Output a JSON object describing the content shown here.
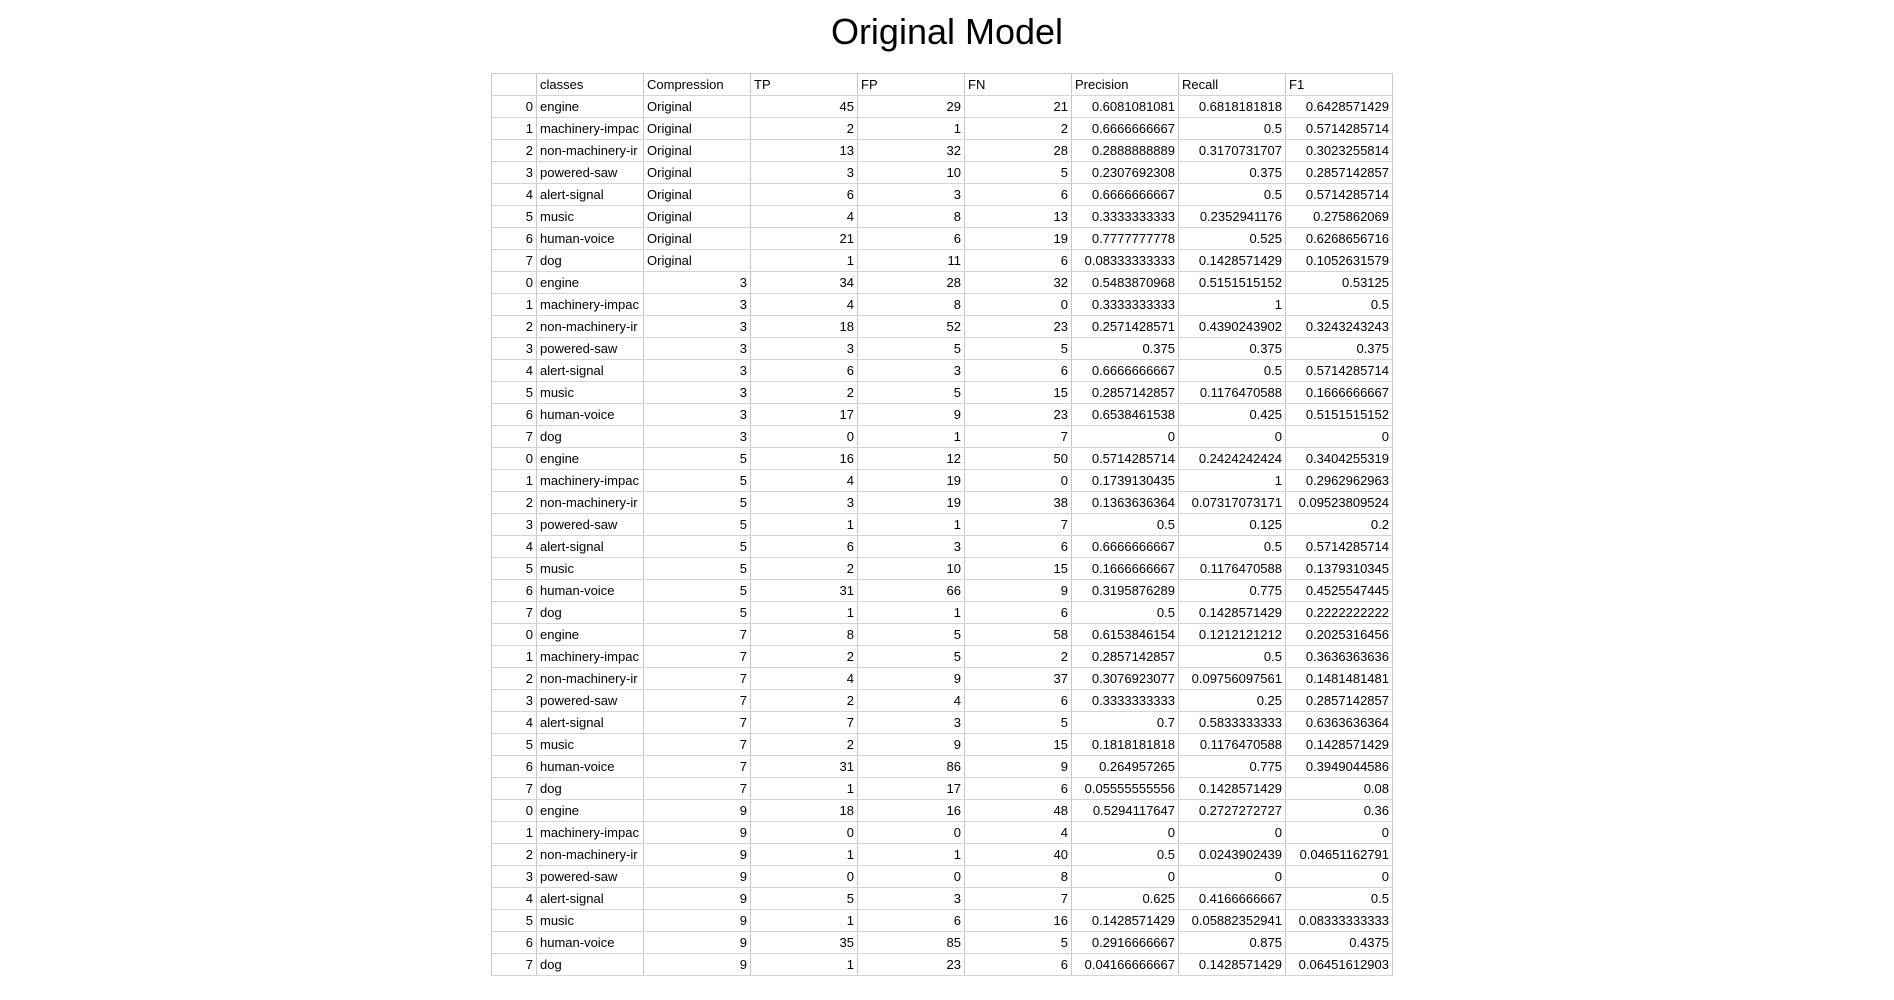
{
  "title": "Original Model",
  "table": {
    "columns": [
      "",
      "classes",
      "Compression",
      "TP",
      "FP",
      "FN",
      "Precision",
      "Recall",
      "F1"
    ],
    "rows": [
      [
        "0",
        "engine",
        "Original",
        "45",
        "29",
        "21",
        "0.6081081081",
        "0.6818181818",
        "0.6428571429"
      ],
      [
        "1",
        "machinery-impac",
        "Original",
        "2",
        "1",
        "2",
        "0.6666666667",
        "0.5",
        "0.5714285714"
      ],
      [
        "2",
        "non-machinery-ir",
        "Original",
        "13",
        "32",
        "28",
        "0.2888888889",
        "0.3170731707",
        "0.3023255814"
      ],
      [
        "3",
        "powered-saw",
        "Original",
        "3",
        "10",
        "5",
        "0.2307692308",
        "0.375",
        "0.2857142857"
      ],
      [
        "4",
        "alert-signal",
        "Original",
        "6",
        "3",
        "6",
        "0.6666666667",
        "0.5",
        "0.5714285714"
      ],
      [
        "5",
        "music",
        "Original",
        "4",
        "8",
        "13",
        "0.3333333333",
        "0.2352941176",
        "0.275862069"
      ],
      [
        "6",
        "human-voice",
        "Original",
        "21",
        "6",
        "19",
        "0.7777777778",
        "0.525",
        "0.6268656716"
      ],
      [
        "7",
        "dog",
        "Original",
        "1",
        "11",
        "6",
        "0.08333333333",
        "0.1428571429",
        "0.1052631579"
      ],
      [
        "0",
        "engine",
        "3",
        "34",
        "28",
        "32",
        "0.5483870968",
        "0.5151515152",
        "0.53125"
      ],
      [
        "1",
        "machinery-impac",
        "3",
        "4",
        "8",
        "0",
        "0.3333333333",
        "1",
        "0.5"
      ],
      [
        "2",
        "non-machinery-ir",
        "3",
        "18",
        "52",
        "23",
        "0.2571428571",
        "0.4390243902",
        "0.3243243243"
      ],
      [
        "3",
        "powered-saw",
        "3",
        "3",
        "5",
        "5",
        "0.375",
        "0.375",
        "0.375"
      ],
      [
        "4",
        "alert-signal",
        "3",
        "6",
        "3",
        "6",
        "0.6666666667",
        "0.5",
        "0.5714285714"
      ],
      [
        "5",
        "music",
        "3",
        "2",
        "5",
        "15",
        "0.2857142857",
        "0.1176470588",
        "0.1666666667"
      ],
      [
        "6",
        "human-voice",
        "3",
        "17",
        "9",
        "23",
        "0.6538461538",
        "0.425",
        "0.5151515152"
      ],
      [
        "7",
        "dog",
        "3",
        "0",
        "1",
        "7",
        "0",
        "0",
        "0"
      ],
      [
        "0",
        "engine",
        "5",
        "16",
        "12",
        "50",
        "0.5714285714",
        "0.2424242424",
        "0.3404255319"
      ],
      [
        "1",
        "machinery-impac",
        "5",
        "4",
        "19",
        "0",
        "0.1739130435",
        "1",
        "0.2962962963"
      ],
      [
        "2",
        "non-machinery-ir",
        "5",
        "3",
        "19",
        "38",
        "0.1363636364",
        "0.07317073171",
        "0.09523809524"
      ],
      [
        "3",
        "powered-saw",
        "5",
        "1",
        "1",
        "7",
        "0.5",
        "0.125",
        "0.2"
      ],
      [
        "4",
        "alert-signal",
        "5",
        "6",
        "3",
        "6",
        "0.6666666667",
        "0.5",
        "0.5714285714"
      ],
      [
        "5",
        "music",
        "5",
        "2",
        "10",
        "15",
        "0.1666666667",
        "0.1176470588",
        "0.1379310345"
      ],
      [
        "6",
        "human-voice",
        "5",
        "31",
        "66",
        "9",
        "0.3195876289",
        "0.775",
        "0.4525547445"
      ],
      [
        "7",
        "dog",
        "5",
        "1",
        "1",
        "6",
        "0.5",
        "0.1428571429",
        "0.2222222222"
      ],
      [
        "0",
        "engine",
        "7",
        "8",
        "5",
        "58",
        "0.6153846154",
        "0.1212121212",
        "0.2025316456"
      ],
      [
        "1",
        "machinery-impac",
        "7",
        "2",
        "5",
        "2",
        "0.2857142857",
        "0.5",
        "0.3636363636"
      ],
      [
        "2",
        "non-machinery-ir",
        "7",
        "4",
        "9",
        "37",
        "0.3076923077",
        "0.09756097561",
        "0.1481481481"
      ],
      [
        "3",
        "powered-saw",
        "7",
        "2",
        "4",
        "6",
        "0.3333333333",
        "0.25",
        "0.2857142857"
      ],
      [
        "4",
        "alert-signal",
        "7",
        "7",
        "3",
        "5",
        "0.7",
        "0.5833333333",
        "0.6363636364"
      ],
      [
        "5",
        "music",
        "7",
        "2",
        "9",
        "15",
        "0.1818181818",
        "0.1176470588",
        "0.1428571429"
      ],
      [
        "6",
        "human-voice",
        "7",
        "31",
        "86",
        "9",
        "0.264957265",
        "0.775",
        "0.3949044586"
      ],
      [
        "7",
        "dog",
        "7",
        "1",
        "17",
        "6",
        "0.05555555556",
        "0.1428571429",
        "0.08"
      ],
      [
        "0",
        "engine",
        "9",
        "18",
        "16",
        "48",
        "0.5294117647",
        "0.2727272727",
        "0.36"
      ],
      [
        "1",
        "machinery-impac",
        "9",
        "0",
        "0",
        "4",
        "0",
        "0",
        "0"
      ],
      [
        "2",
        "non-machinery-ir",
        "9",
        "1",
        "1",
        "40",
        "0.5",
        "0.0243902439",
        "0.04651162791"
      ],
      [
        "3",
        "powered-saw",
        "9",
        "0",
        "0",
        "8",
        "0",
        "0",
        "0"
      ],
      [
        "4",
        "alert-signal",
        "9",
        "5",
        "3",
        "7",
        "0.625",
        "0.4166666667",
        "0.5"
      ],
      [
        "5",
        "music",
        "9",
        "1",
        "6",
        "16",
        "0.1428571429",
        "0.05882352941",
        "0.08333333333"
      ],
      [
        "6",
        "human-voice",
        "9",
        "35",
        "85",
        "5",
        "0.2916666667",
        "0.875",
        "0.4375"
      ],
      [
        "7",
        "dog",
        "9",
        "1",
        "23",
        "6",
        "0.04166666667",
        "0.1428571429",
        "0.06451612903"
      ]
    ]
  }
}
